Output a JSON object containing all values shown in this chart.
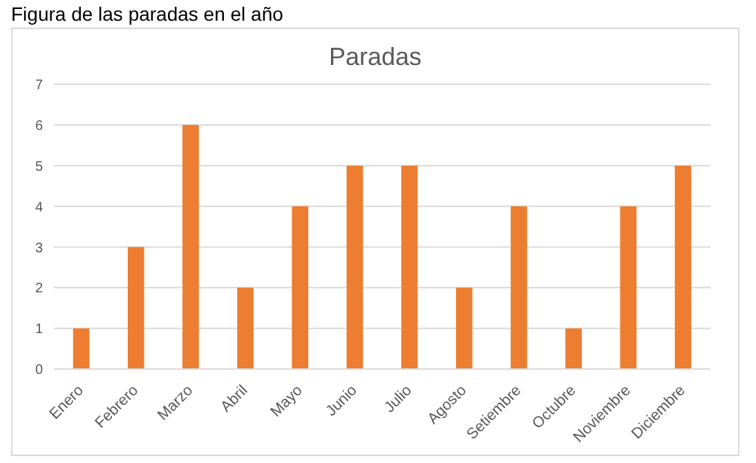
{
  "chart_data": {
    "type": "bar",
    "title": "Paradas",
    "annotations": [
      "Figura de las paradas en el año"
    ],
    "categories": [
      "Enero",
      "Febrero",
      "Marzo",
      "Abril",
      "Mayo",
      "Junio",
      "Julio",
      "Agosto",
      "Setiembre",
      "Octubre",
      "Noviembre",
      "Diciembre"
    ],
    "values": [
      1,
      3,
      6,
      2,
      4,
      5,
      5,
      2,
      4,
      1,
      4,
      5
    ],
    "color": "#ed7d31",
    "ylim": [
      0,
      7
    ],
    "yticks": [
      0,
      1,
      2,
      3,
      4,
      5,
      6,
      7
    ],
    "grid": "y"
  }
}
